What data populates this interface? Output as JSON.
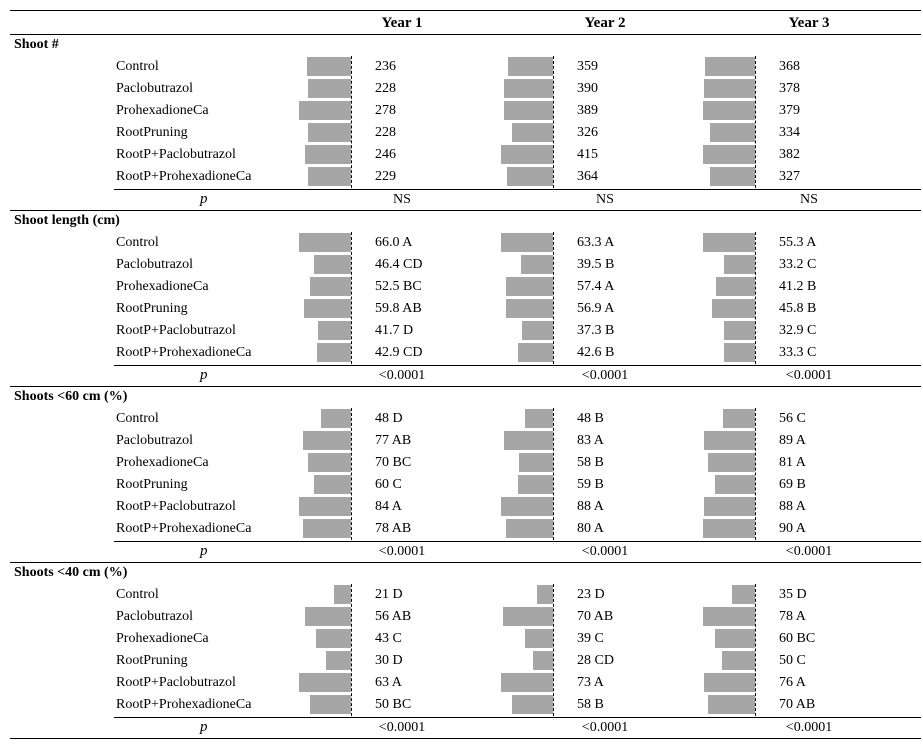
{
  "columns": [
    "Year 1",
    "Year 2",
    "Year 3"
  ],
  "p_label": "p",
  "colors": {
    "bar": "#a6a6a6"
  },
  "sections": [
    {
      "title": "Shoot #",
      "rows": [
        {
          "treatment": "Control",
          "cells": [
            {
              "label": "236",
              "value": 236
            },
            {
              "label": "359",
              "value": 359
            },
            {
              "label": "368",
              "value": 368
            }
          ]
        },
        {
          "treatment": "Paclobutrazol",
          "cells": [
            {
              "label": "228",
              "value": 228
            },
            {
              "label": "390",
              "value": 390
            },
            {
              "label": "378",
              "value": 378
            }
          ]
        },
        {
          "treatment": "ProhexadioneCa",
          "cells": [
            {
              "label": "278",
              "value": 278
            },
            {
              "label": "389",
              "value": 389
            },
            {
              "label": "379",
              "value": 379
            }
          ]
        },
        {
          "treatment": "RootPruning",
          "cells": [
            {
              "label": "228",
              "value": 228
            },
            {
              "label": "326",
              "value": 326
            },
            {
              "label": "334",
              "value": 334
            }
          ]
        },
        {
          "treatment": "RootP+Paclobutrazol",
          "cells": [
            {
              "label": "246",
              "value": 246
            },
            {
              "label": "415",
              "value": 415
            },
            {
              "label": "382",
              "value": 382
            }
          ]
        },
        {
          "treatment": "RootP+ProhexadioneCa",
          "cells": [
            {
              "label": "229",
              "value": 229
            },
            {
              "label": "364",
              "value": 364
            },
            {
              "label": "327",
              "value": 327
            }
          ]
        }
      ],
      "p": [
        "NS",
        "NS",
        "NS"
      ]
    },
    {
      "title": "Shoot length (cm)",
      "rows": [
        {
          "treatment": "Control",
          "cells": [
            {
              "label": "66.0 A",
              "value": 66.0
            },
            {
              "label": "63.3 A",
              "value": 63.3
            },
            {
              "label": "55.3 A",
              "value": 55.3
            }
          ]
        },
        {
          "treatment": "Paclobutrazol",
          "cells": [
            {
              "label": "46.4 CD",
              "value": 46.4
            },
            {
              "label": "39.5 B",
              "value": 39.5
            },
            {
              "label": "33.2 C",
              "value": 33.2
            }
          ]
        },
        {
          "treatment": "ProhexadioneCa",
          "cells": [
            {
              "label": "52.5 BC",
              "value": 52.5
            },
            {
              "label": "57.4 A",
              "value": 57.4
            },
            {
              "label": "41.2 B",
              "value": 41.2
            }
          ]
        },
        {
          "treatment": "RootPruning",
          "cells": [
            {
              "label": "59.8 AB",
              "value": 59.8
            },
            {
              "label": "56.9 A",
              "value": 56.9
            },
            {
              "label": "45.8 B",
              "value": 45.8
            }
          ]
        },
        {
          "treatment": "RootP+Paclobutrazol",
          "cells": [
            {
              "label": "41.7 D",
              "value": 41.7
            },
            {
              "label": "37.3 B",
              "value": 37.3
            },
            {
              "label": "32.9 C",
              "value": 32.9
            }
          ]
        },
        {
          "treatment": "RootP+ProhexadioneCa",
          "cells": [
            {
              "label": "42.9 CD",
              "value": 42.9
            },
            {
              "label": "42.6 B",
              "value": 42.6
            },
            {
              "label": "33.3 C",
              "value": 33.3
            }
          ]
        }
      ],
      "p": [
        "<0.0001",
        "<0.0001",
        "<0.0001"
      ]
    },
    {
      "title": "Shoots <60 cm (%)",
      "rows": [
        {
          "treatment": "Control",
          "cells": [
            {
              "label": "48 D",
              "value": 48
            },
            {
              "label": "48 B",
              "value": 48
            },
            {
              "label": "56 C",
              "value": 56
            }
          ]
        },
        {
          "treatment": "Paclobutrazol",
          "cells": [
            {
              "label": "77 AB",
              "value": 77
            },
            {
              "label": "83 A",
              "value": 83
            },
            {
              "label": "89 A",
              "value": 89
            }
          ]
        },
        {
          "treatment": "ProhexadioneCa",
          "cells": [
            {
              "label": "70 BC",
              "value": 70
            },
            {
              "label": "58 B",
              "value": 58
            },
            {
              "label": "81 A",
              "value": 81
            }
          ]
        },
        {
          "treatment": "RootPruning",
          "cells": [
            {
              "label": "60 C",
              "value": 60
            },
            {
              "label": "59 B",
              "value": 59
            },
            {
              "label": "69 B",
              "value": 69
            }
          ]
        },
        {
          "treatment": "RootP+Paclobutrazol",
          "cells": [
            {
              "label": "84 A",
              "value": 84
            },
            {
              "label": "88 A",
              "value": 88
            },
            {
              "label": "88 A",
              "value": 88
            }
          ]
        },
        {
          "treatment": "RootP+ProhexadioneCa",
          "cells": [
            {
              "label": "78 AB",
              "value": 78
            },
            {
              "label": "80 A",
              "value": 80
            },
            {
              "label": "90 A",
              "value": 90
            }
          ]
        }
      ],
      "p": [
        "<0.0001",
        "<0.0001",
        "<0.0001"
      ]
    },
    {
      "title": "Shoots <40 cm (%)",
      "rows": [
        {
          "treatment": "Control",
          "cells": [
            {
              "label": "21 D",
              "value": 21
            },
            {
              "label": "23 D",
              "value": 23
            },
            {
              "label": "35 D",
              "value": 35
            }
          ]
        },
        {
          "treatment": "Paclobutrazol",
          "cells": [
            {
              "label": "56 AB",
              "value": 56
            },
            {
              "label": "70 AB",
              "value": 70
            },
            {
              "label": "78 A",
              "value": 78
            }
          ]
        },
        {
          "treatment": "ProhexadioneCa",
          "cells": [
            {
              "label": "43 C",
              "value": 43
            },
            {
              "label": "39 C",
              "value": 39
            },
            {
              "label": "60 BC",
              "value": 60
            }
          ]
        },
        {
          "treatment": "RootPruning",
          "cells": [
            {
              "label": "30 D",
              "value": 30
            },
            {
              "label": "28 CD",
              "value": 28
            },
            {
              "label": "50 C",
              "value": 50
            }
          ]
        },
        {
          "treatment": "RootP+Paclobutrazol",
          "cells": [
            {
              "label": "63 A",
              "value": 63
            },
            {
              "label": "73 A",
              "value": 73
            },
            {
              "label": "76 A",
              "value": 76
            }
          ]
        },
        {
          "treatment": "RootP+ProhexadioneCa",
          "cells": [
            {
              "label": "50 BC",
              "value": 50
            },
            {
              "label": "58 B",
              "value": 58
            },
            {
              "label": "70 AB",
              "value": 70
            }
          ]
        }
      ],
      "p": [
        "<0.0001",
        "<0.0001",
        "<0.0001"
      ]
    }
  ]
}
